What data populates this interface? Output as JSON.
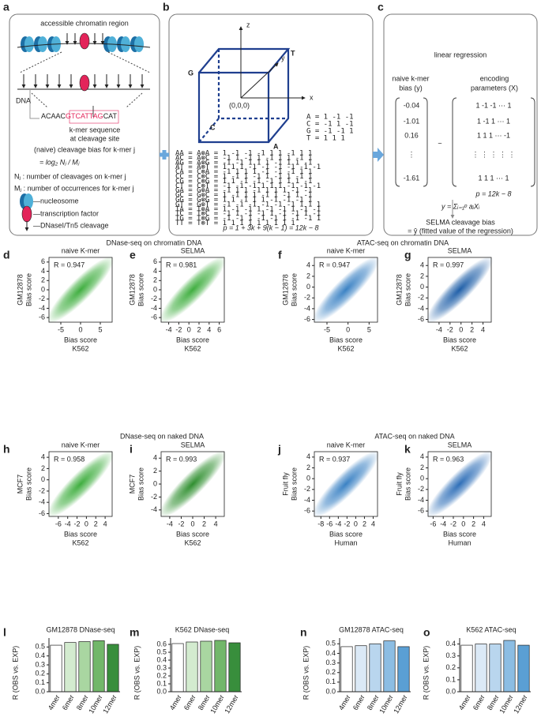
{
  "panel_labels": [
    "a",
    "b",
    "c",
    "d",
    "e",
    "f",
    "g",
    "h",
    "i",
    "j",
    "k",
    "l",
    "m",
    "n",
    "o"
  ],
  "panel_a": {
    "title": "accessible chromatin region",
    "dna_label": "DNA",
    "sequence_left": "ACAAC",
    "sequence_kmer": "GTCATTAG",
    "sequence_right": "CAT",
    "kmer_caption": [
      "k-mer sequence",
      "at cleavage site"
    ],
    "bias_label": "(naive) cleavage bias for k-mer j",
    "bias_formula": "= log₂ Nⱼ / Mⱼ",
    "definitions": [
      "Nⱼ : number of cleavages on k-mer j",
      "Mⱼ : number of occurrences for k-mer j"
    ],
    "legend": [
      "—nucleosome",
      "—transcription factor",
      "—DNaseI/Tn5 cleavage"
    ]
  },
  "panel_b": {
    "axes": [
      "z",
      "y",
      "x"
    ],
    "vertices": [
      "G",
      "T",
      "C",
      "A",
      "(0,0,0)"
    ],
    "encoding": [
      "A =  1 -1 -1",
      "C = -1  1 -1",
      "G = -1 -1  1",
      "T =  1  1  1"
    ],
    "matrix": [
      "AA = A⊗A =  1 -1 -1 -1  1  1 -1  1  1",
      "AC = A⊗C = -1  1 -1  1 -1  1  1 -1  1",
      "AG = A⊗G = -1 -1  1  1  1 -1  1  1 -1",
      "AT = A⊗T =  1  1  1 -1 -1 -1 -1 -1 -1",
      "CA = C⊗A = -1  1  1  1 -1 -1 -1  1  1",
      "CC = C⊗C =  1 -1  1 -1  1 -1  1 -1  1",
      "CG = C⊗G =  1  1 -1 -1 -1  1  1  1 -1",
      "CT = C⊗T = -1 -1 -1  1  1  1 -1 -1 -1",
      "GA = G⊗A = -1  1  1 -1  1  1  1 -1 -1",
      "GC = G⊗C =  1 -1  1  1 -1  1 -1  1 -1",
      "GG = G⊗G =  1  1 -1  1  1 -1 -1 -1  1",
      "GT = G⊗T = -1 -1 -1 -1 -1 -1  1  1  1",
      "TA = T⊗A =  1 -1 -1  1 -1 -1  1 -1 -1",
      "TC = T⊗C = -1  1 -1 -1  1 -1 -1  1 -1",
      "TG = T⊗G = -1 -1  1 -1 -1  1 -1 -1  1",
      "TT = T⊗T =  1  1  1  1  1  1  1  1  1"
    ],
    "formula": "p = 1 + 3k + 9(k − 1) = 12k − 8"
  },
  "panel_c": {
    "title": "linear regression",
    "y_label": [
      "naive k-mer",
      "bias (y)"
    ],
    "x_label": [
      "encoding",
      "parameters (X)"
    ],
    "y_vector": [
      -0.04,
      -1.01,
      0.16,
      "⋮",
      -1.61
    ],
    "tilde": "~",
    "matrix_rows": [
      "1  -1  -1  ⋯  1",
      "1  -1   1  ⋯  1",
      "1   1   1  ⋯  -1",
      "⋮    ⋮    ⋮   ⋮   ⋮",
      "1   1   1  ⋯  1"
    ],
    "p_formula": "p = 12k − 8",
    "model": "y = Σᵢ₌₁ᵖ aᵢXᵢ",
    "output_label": "SELMA cleavage bias",
    "output_formula": "= ŷ (fitted value of the regression)"
  },
  "section_titles": [
    "DNase-seq on chromatin DNA",
    "ATAC-seq on chromatin DNA",
    "DNase-seq on naked DNA",
    "ATAC-seq on naked DNA"
  ],
  "chart_data": [
    {
      "type": "scatter",
      "title": "naive K-mer",
      "annotation": "R = 0.947",
      "y_label": [
        "GM12878",
        "Bias score"
      ],
      "x_label": [
        "Bias score",
        "K562"
      ],
      "color": "#3fae3f",
      "xlim": [
        -8,
        8
      ],
      "ylim": [
        -7,
        7
      ],
      "xticks": [
        -5,
        0,
        5
      ],
      "yticks": [
        -6,
        -4,
        -2,
        0,
        2,
        4,
        6
      ]
    },
    {
      "type": "scatter",
      "title": "SELMA",
      "annotation": "R = 0.981",
      "y_label": [
        "GM12878",
        "Bias score"
      ],
      "x_label": [
        "Bias score",
        "K562"
      ],
      "color": "#3fae3f",
      "xlim": [
        -5.5,
        7
      ],
      "ylim": [
        -7,
        7
      ],
      "xticks": [
        -4,
        -2,
        0,
        2,
        4,
        6
      ],
      "yticks": [
        -6,
        -4,
        -2,
        0,
        2,
        4,
        6
      ]
    },
    {
      "type": "scatter",
      "title": "naive K-mer",
      "annotation": "R = 0.947",
      "y_label": [
        "GM12878",
        "Bias score"
      ],
      "x_label": [
        "Bias score",
        "K562"
      ],
      "color": "#3b82c4",
      "xlim": [
        -8,
        7
      ],
      "ylim": [
        -6.5,
        5.5
      ],
      "xticks": [
        -5,
        0,
        5
      ],
      "yticks": [
        -6,
        -4,
        -2,
        0,
        2,
        4
      ]
    },
    {
      "type": "scatter",
      "title": "SELMA",
      "annotation": "R = 0.997",
      "y_label": [
        "GM12878",
        "Bias score"
      ],
      "x_label": [
        "Bias score",
        "K562"
      ],
      "color": "#1f5fa8",
      "xlim": [
        -6,
        5.5
      ],
      "ylim": [
        -6.5,
        5.5
      ],
      "xticks": [
        -4,
        -2,
        0,
        2,
        4
      ],
      "yticks": [
        -6,
        -4,
        -2,
        0,
        2,
        4
      ]
    },
    {
      "type": "scatter",
      "title": "naive K-mer",
      "annotation": "R = 0.958",
      "y_label": [
        "MCF7",
        "Bias score"
      ],
      "x_label": [
        "Bias score",
        "K562"
      ],
      "color": "#3fae3f",
      "xlim": [
        -8,
        5.5
      ],
      "ylim": [
        -6.5,
        5
      ],
      "xticks": [
        -6,
        -4,
        -2,
        0,
        2,
        4
      ],
      "yticks": [
        -6,
        -4,
        -2,
        0,
        2,
        4
      ]
    },
    {
      "type": "scatter",
      "title": "SELMA",
      "annotation": "R = 0.993",
      "y_label": [
        "MCF7",
        "Bias score"
      ],
      "x_label": [
        "Bias score",
        "K562"
      ],
      "color": "#2f8f2f",
      "xlim": [
        -5.5,
        5.5
      ],
      "ylim": [
        -5,
        5
      ],
      "xticks": [
        -4,
        -2,
        0,
        2,
        4
      ],
      "yticks": [
        -4,
        -2,
        0,
        2,
        4
      ]
    },
    {
      "type": "scatter",
      "title": "naive K-mer",
      "annotation": "R = 0.937",
      "y_label": [
        "Fruit fly",
        "Bias score"
      ],
      "x_label": [
        "Bias score",
        "Human"
      ],
      "color": "#3b82c4",
      "xlim": [
        -9.5,
        5
      ],
      "ylim": [
        -7,
        5
      ],
      "xticks": [
        -8,
        -6,
        -4,
        -2,
        0,
        2,
        4
      ],
      "yticks": [
        -6,
        -4,
        -2,
        0,
        2,
        4
      ]
    },
    {
      "type": "scatter",
      "title": "SELMA",
      "annotation": "R = 0.963",
      "y_label": [
        "Fruit fly",
        "Bias score"
      ],
      "x_label": [
        "Bias score",
        "Human"
      ],
      "color": "#2f6fb8",
      "xlim": [
        -7,
        5.5
      ],
      "ylim": [
        -7,
        5
      ],
      "xticks": [
        -6,
        -4,
        -2,
        0,
        2,
        4
      ],
      "yticks": [
        -6,
        -4,
        -2,
        0,
        2,
        4
      ]
    },
    {
      "type": "bar",
      "title": "GM12878 DNase-seq",
      "y_label": "R (OBS vs. EXP)",
      "categories": [
        "4mer",
        "6mer",
        "8mer",
        "10mer",
        "12mer"
      ],
      "values": [
        0.52,
        0.55,
        0.56,
        0.57,
        0.53
      ],
      "colors": [
        "#ffffff",
        "#d3ebcf",
        "#a9d6a1",
        "#72b76a",
        "#388e3c"
      ],
      "ylim": [
        0,
        0.6
      ],
      "yticks": [
        {
          "value": 0,
          "label": "0.0"
        },
        0.1,
        0.2,
        0.3,
        0.4,
        0.5
      ]
    },
    {
      "type": "bar",
      "title": "K562 DNase-seq",
      "y_label": "R (OBS vs. EXP)",
      "categories": [
        "4mer",
        "6mer",
        "8mer",
        "10mer",
        "12mer"
      ],
      "values": [
        0.61,
        0.63,
        0.64,
        0.65,
        0.62
      ],
      "colors": [
        "#ffffff",
        "#d3ebcf",
        "#a9d6a1",
        "#72b76a",
        "#388e3c"
      ],
      "ylim": [
        0,
        0.68
      ],
      "yticks": [
        {
          "value": 0,
          "label": "0.0"
        },
        0.1,
        0.2,
        0.3,
        0.4,
        0.5,
        0.6
      ]
    },
    {
      "type": "bar",
      "title": "GM12878 ATAC-seq",
      "y_label": "R (OBS vs. EXP)",
      "categories": [
        "4mer",
        "6mer",
        "8mer",
        "10mer",
        "12mer"
      ],
      "values": [
        0.47,
        0.48,
        0.5,
        0.53,
        0.47
      ],
      "colors": [
        "#ffffff",
        "#dbe9f6",
        "#b9d6ee",
        "#8cbde3",
        "#5a9fd4"
      ],
      "ylim": [
        0,
        0.56
      ],
      "yticks": [
        {
          "value": 0,
          "label": "0.0"
        },
        0.1,
        0.2,
        0.3,
        0.4,
        0.5
      ]
    },
    {
      "type": "bar",
      "title": "K562 ATAC-seq",
      "y_label": "R (OBS vs. EXP)",
      "categories": [
        "4mer",
        "6mer",
        "8mer",
        "10mer",
        "12mer"
      ],
      "values": [
        0.39,
        0.4,
        0.4,
        0.43,
        0.39
      ],
      "colors": [
        "#ffffff",
        "#dbe9f6",
        "#b9d6ee",
        "#8cbde3",
        "#5a9fd4"
      ],
      "ylim": [
        0,
        0.45
      ],
      "yticks": [
        {
          "value": 0,
          "label": "0.0"
        },
        0.1,
        0.2,
        0.3,
        0.4
      ]
    }
  ]
}
